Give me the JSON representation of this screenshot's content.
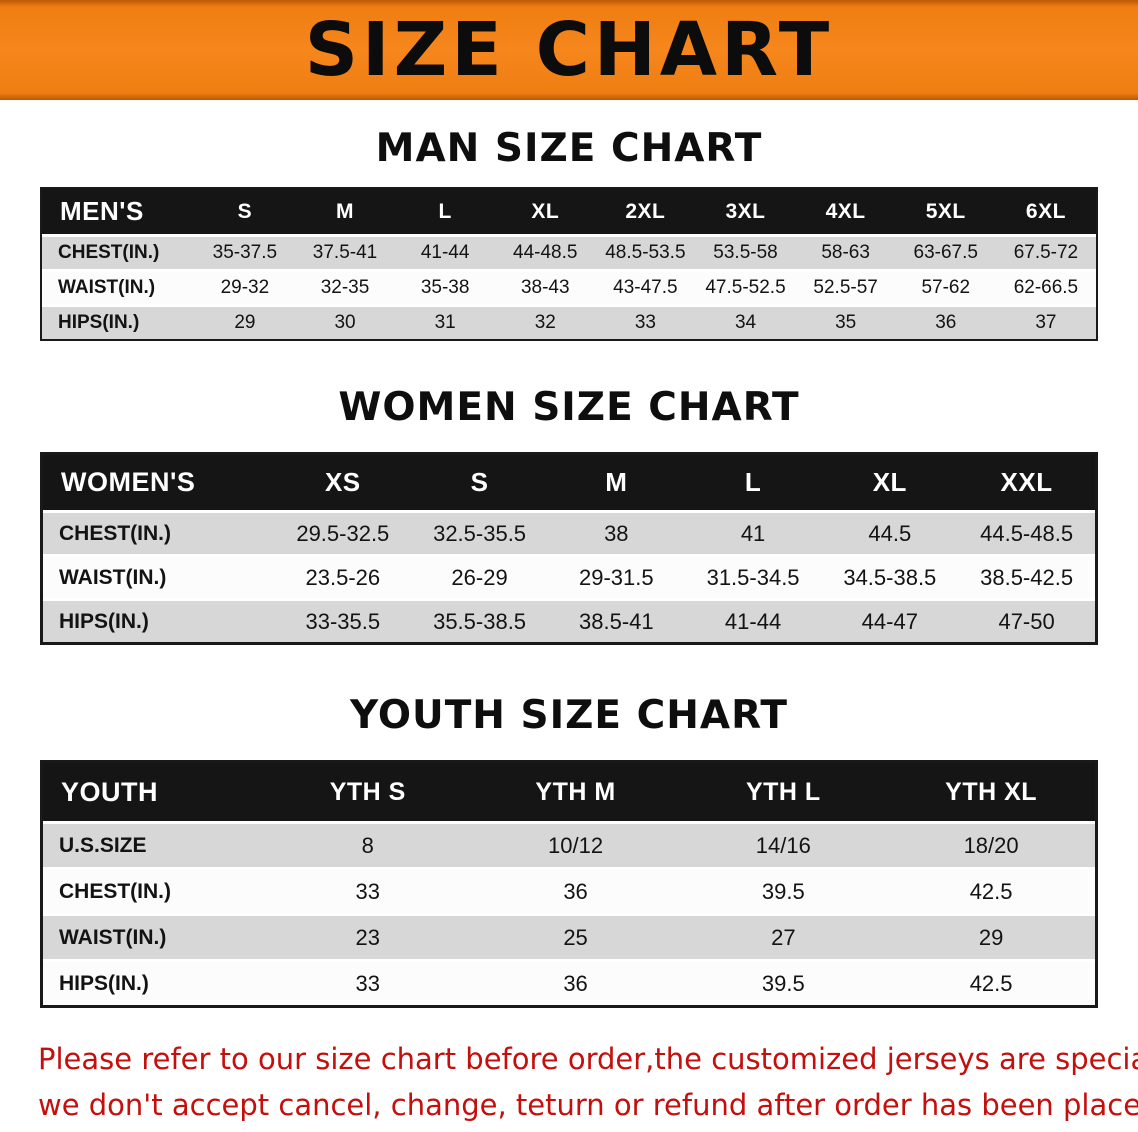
{
  "banner": {
    "title": "SIZE CHART"
  },
  "sections": {
    "men": {
      "heading": "MAN SIZE CHART",
      "table": {
        "header": [
          "MEN'S",
          "S",
          "M",
          "L",
          "XL",
          "2XL",
          "3XL",
          "4XL",
          "5XL",
          "6XL"
        ],
        "rows": [
          [
            "CHEST(IN.)",
            "35-37.5",
            "37.5-41",
            "41-44",
            "44-48.5",
            "48.5-53.5",
            "53.5-58",
            "58-63",
            "63-67.5",
            "67.5-72"
          ],
          [
            "WAIST(IN.)",
            "29-32",
            "32-35",
            "35-38",
            "38-43",
            "43-47.5",
            "47.5-52.5",
            "52.5-57",
            "57-62",
            "62-66.5"
          ],
          [
            "HIPS(IN.)",
            "29",
            "30",
            "31",
            "32",
            "33",
            "34",
            "35",
            "36",
            "37"
          ]
        ]
      }
    },
    "women": {
      "heading": "WOMEN SIZE CHART",
      "table": {
        "header": [
          "WOMEN'S",
          "XS",
          "S",
          "M",
          "L",
          "XL",
          "XXL"
        ],
        "rows": [
          [
            "CHEST(IN.)",
            "29.5-32.5",
            "32.5-35.5",
            "38",
            "41",
            "44.5",
            "44.5-48.5"
          ],
          [
            "WAIST(IN.)",
            "23.5-26",
            "26-29",
            "29-31.5",
            "31.5-34.5",
            "34.5-38.5",
            "38.5-42.5"
          ],
          [
            "HIPS(IN.)",
            "33-35.5",
            "35.5-38.5",
            "38.5-41",
            "41-44",
            "44-47",
            "47-50"
          ]
        ]
      }
    },
    "youth": {
      "heading": "YOUTH SIZE CHART",
      "table": {
        "header": [
          "YOUTH",
          "YTH S",
          "YTH M",
          "YTH L",
          "YTH XL"
        ],
        "rows": [
          [
            "U.S.SIZE",
            "8",
            "10/12",
            "14/16",
            "18/20"
          ],
          [
            "CHEST(IN.)",
            "33",
            "36",
            "39.5",
            "42.5"
          ],
          [
            "WAIST(IN.)",
            "23",
            "25",
            "27",
            "29"
          ],
          [
            "HIPS(IN.)",
            "33",
            "36",
            "39.5",
            "42.5"
          ]
        ]
      }
    }
  },
  "footer": {
    "line1": "Please refer to our size chart before order,the customized jerseys are special products,",
    "line2": "we don't accept cancel, change, teturn or refund after order has been placed!"
  },
  "colors": {
    "banner_orange": "#f6871c",
    "table_header_black": "#151515",
    "row_gray": "#d7d7d7",
    "disclaimer_red": "#c40f0c"
  }
}
